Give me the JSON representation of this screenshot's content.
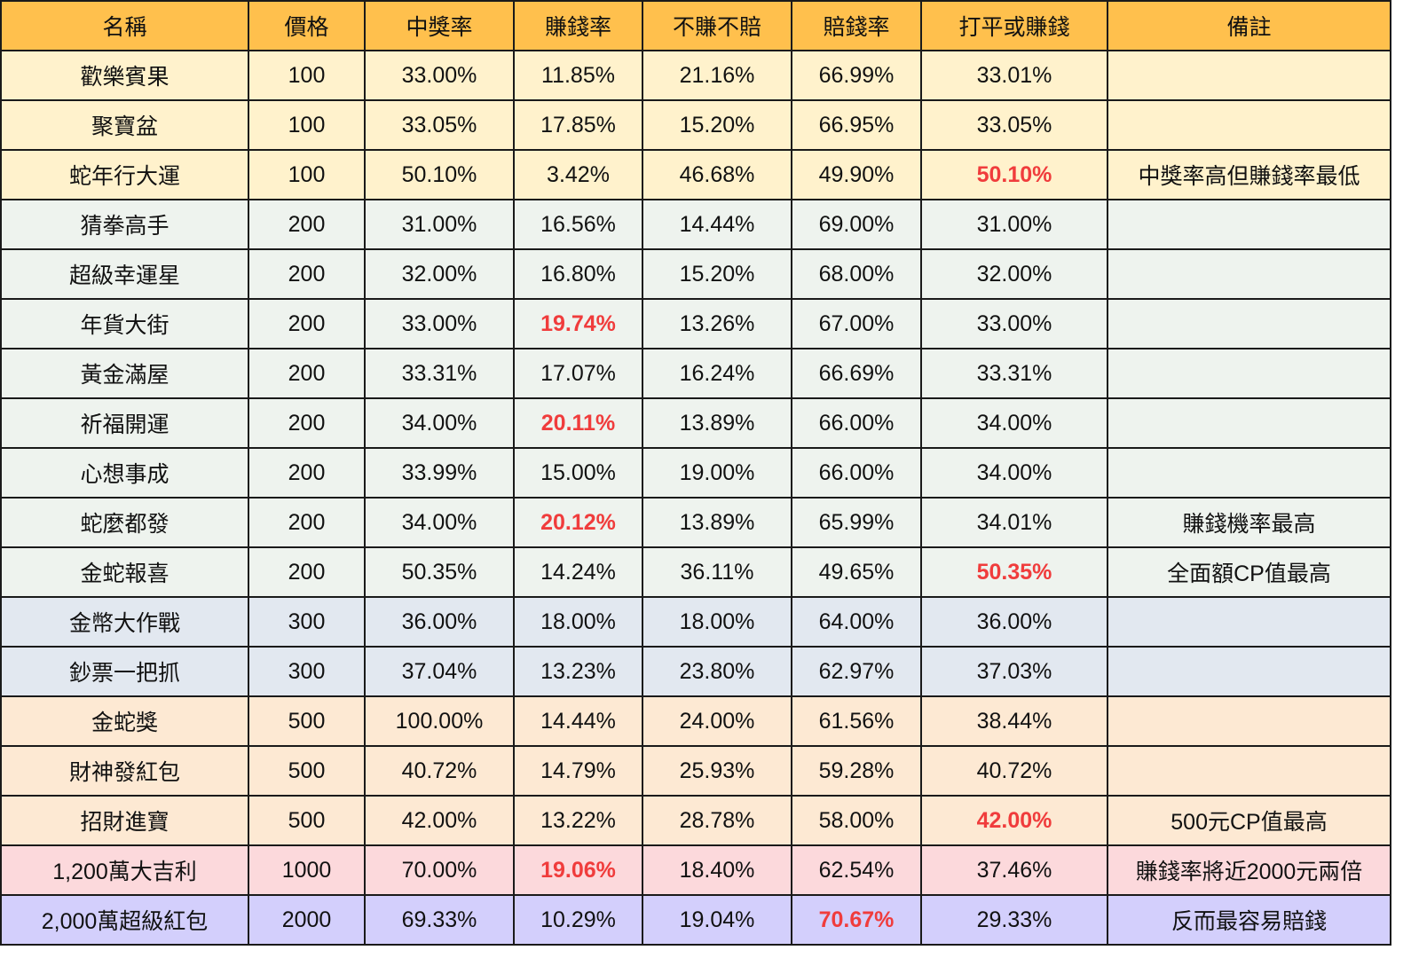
{
  "headers": [
    "名稱",
    "價格",
    "中獎率",
    "賺錢率",
    "不賺不賠",
    "賠錢率",
    "打平或賺錢",
    "備註"
  ],
  "colors": {
    "header_bg": "#ffc04d",
    "highlight_text": "#f03c3c"
  },
  "rows": [
    {
      "group": "100",
      "cells": [
        "歡樂賓果",
        "100",
        "33.00%",
        "11.85%",
        "21.16%",
        "66.99%",
        "33.01%",
        ""
      ],
      "hl": []
    },
    {
      "group": "100",
      "cells": [
        "聚寶盆",
        "100",
        "33.05%",
        "17.85%",
        "15.20%",
        "66.95%",
        "33.05%",
        ""
      ],
      "hl": []
    },
    {
      "group": "100",
      "cells": [
        "蛇年行大運",
        "100",
        "50.10%",
        "3.42%",
        "46.68%",
        "49.90%",
        "50.10%",
        "中獎率高但賺錢率最低"
      ],
      "hl": [
        6
      ]
    },
    {
      "group": "200",
      "cells": [
        "猜拳高手",
        "200",
        "31.00%",
        "16.56%",
        "14.44%",
        "69.00%",
        "31.00%",
        ""
      ],
      "hl": []
    },
    {
      "group": "200",
      "cells": [
        "超級幸運星",
        "200",
        "32.00%",
        "16.80%",
        "15.20%",
        "68.00%",
        "32.00%",
        ""
      ],
      "hl": []
    },
    {
      "group": "200",
      "cells": [
        "年貨大街",
        "200",
        "33.00%",
        "19.74%",
        "13.26%",
        "67.00%",
        "33.00%",
        ""
      ],
      "hl": [
        3
      ]
    },
    {
      "group": "200",
      "cells": [
        "黃金滿屋",
        "200",
        "33.31%",
        "17.07%",
        "16.24%",
        "66.69%",
        "33.31%",
        ""
      ],
      "hl": []
    },
    {
      "group": "200",
      "cells": [
        "祈福開運",
        "200",
        "34.00%",
        "20.11%",
        "13.89%",
        "66.00%",
        "34.00%",
        ""
      ],
      "hl": [
        3
      ]
    },
    {
      "group": "200",
      "cells": [
        "心想事成",
        "200",
        "33.99%",
        "15.00%",
        "19.00%",
        "66.00%",
        "34.00%",
        ""
      ],
      "hl": []
    },
    {
      "group": "200",
      "cells": [
        "蛇麼都發",
        "200",
        "34.00%",
        "20.12%",
        "13.89%",
        "65.99%",
        "34.01%",
        "賺錢機率最高"
      ],
      "hl": [
        3
      ]
    },
    {
      "group": "200",
      "cells": [
        "金蛇報喜",
        "200",
        "50.35%",
        "14.24%",
        "36.11%",
        "49.65%",
        "50.35%",
        "全面額CP值最高"
      ],
      "hl": [
        6
      ]
    },
    {
      "group": "300",
      "cells": [
        "金幣大作戰",
        "300",
        "36.00%",
        "18.00%",
        "18.00%",
        "64.00%",
        "36.00%",
        ""
      ],
      "hl": []
    },
    {
      "group": "300",
      "cells": [
        "鈔票一把抓",
        "300",
        "37.04%",
        "13.23%",
        "23.80%",
        "62.97%",
        "37.03%",
        ""
      ],
      "hl": []
    },
    {
      "group": "500",
      "cells": [
        "金蛇獎",
        "500",
        "100.00%",
        "14.44%",
        "24.00%",
        "61.56%",
        "38.44%",
        ""
      ],
      "hl": []
    },
    {
      "group": "500",
      "cells": [
        "財神發紅包",
        "500",
        "40.72%",
        "14.79%",
        "25.93%",
        "59.28%",
        "40.72%",
        ""
      ],
      "hl": []
    },
    {
      "group": "500",
      "cells": [
        "招財進寶",
        "500",
        "42.00%",
        "13.22%",
        "28.78%",
        "58.00%",
        "42.00%",
        "500元CP值最高"
      ],
      "hl": [
        6
      ]
    },
    {
      "group": "1000",
      "cells": [
        "1,200萬大吉利",
        "1000",
        "70.00%",
        "19.06%",
        "18.40%",
        "62.54%",
        "37.46%",
        "賺錢率將近2000元兩倍"
      ],
      "hl": [
        3
      ]
    },
    {
      "group": "2000",
      "cells": [
        "2,000萬超級紅包",
        "2000",
        "69.33%",
        "10.29%",
        "19.04%",
        "70.67%",
        "29.33%",
        "反而最容易賠錢"
      ],
      "hl": [
        5
      ]
    }
  ]
}
